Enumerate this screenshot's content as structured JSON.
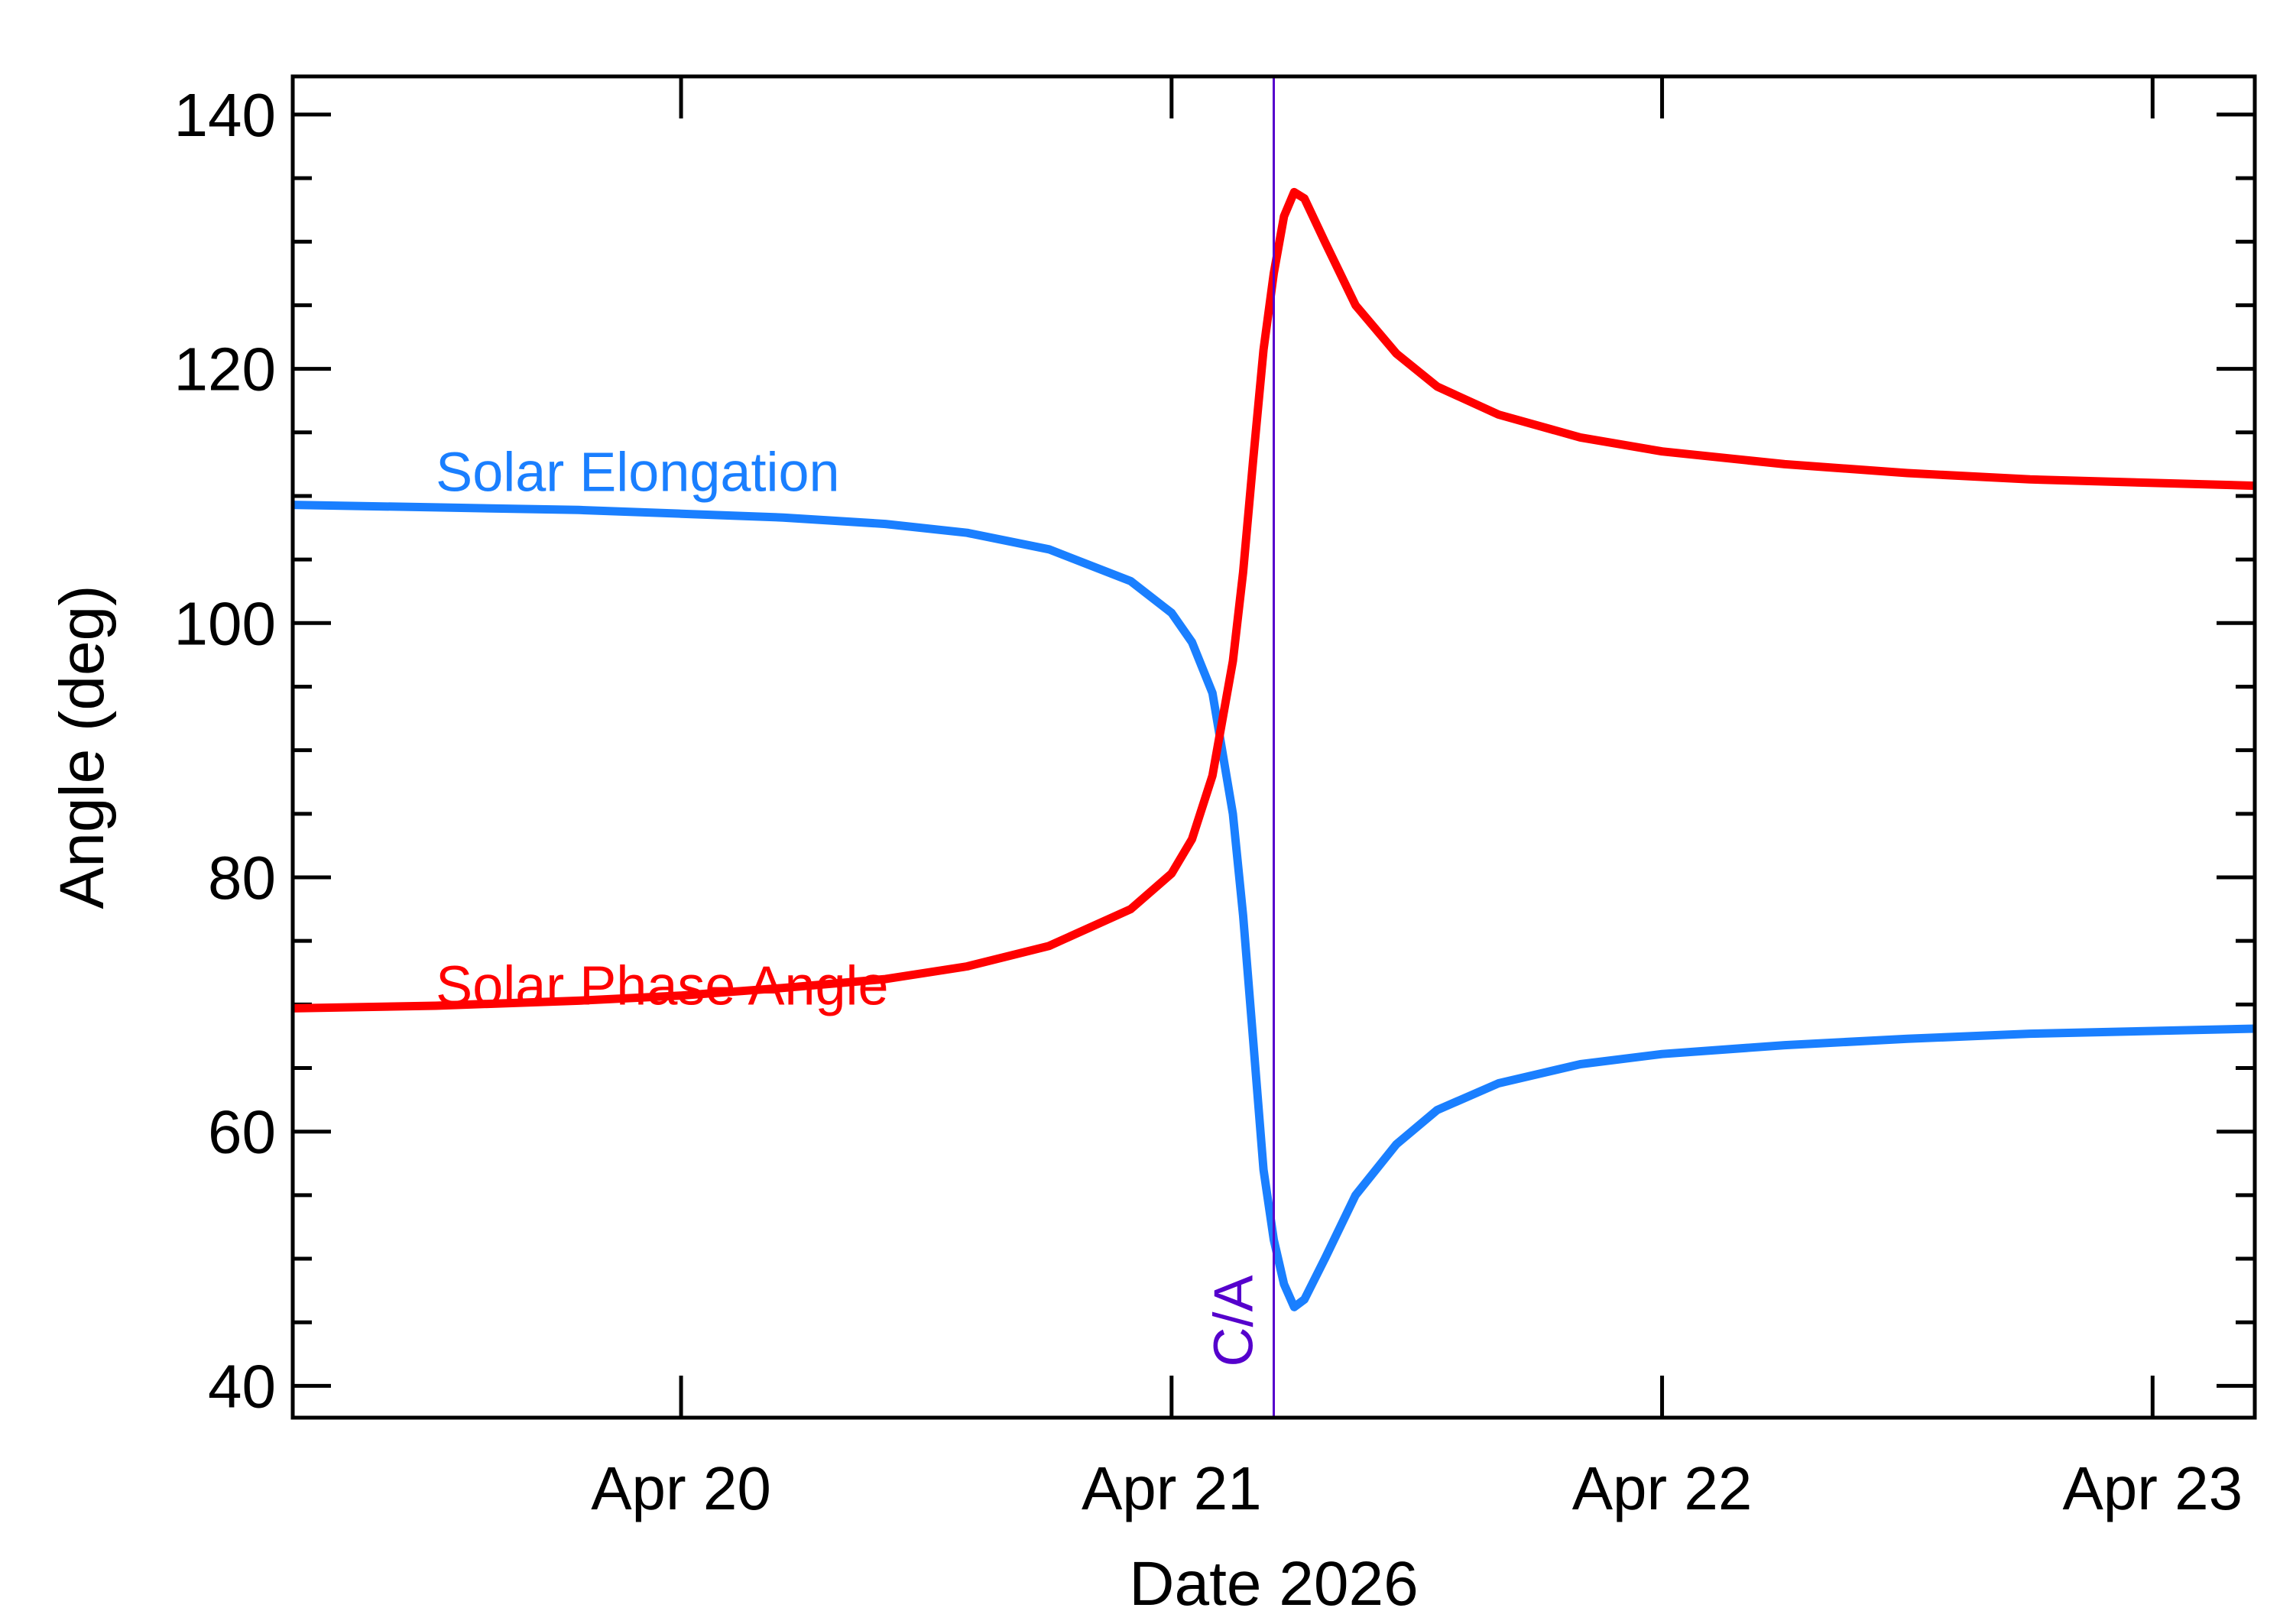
{
  "chart_data": {
    "type": "line",
    "title": "",
    "xlabel": "Date 2026",
    "ylabel": "Angle (deg)",
    "xlim": [
      "2026-04-19 05:00",
      "2026-04-23 05:00"
    ],
    "ylim": [
      37.5,
      143
    ],
    "grid": false,
    "legend": "inline labels",
    "x_ticks": [
      {
        "value": "2026-04-20",
        "label": "Apr 20"
      },
      {
        "value": "2026-04-21",
        "label": "Apr 21"
      },
      {
        "value": "2026-04-22",
        "label": "Apr 22"
      },
      {
        "value": "2026-04-23",
        "label": "Apr 23"
      }
    ],
    "y_ticks": [
      40,
      60,
      80,
      100,
      120,
      140
    ],
    "closest_approach": {
      "label": "C/A",
      "x": "2026-04-21 05:00",
      "color": "#5500cc"
    },
    "series": [
      {
        "name": "Solar Elongation",
        "color": "#1a7fff",
        "points": [
          [
            "2026-04-19 05:00",
            109.3
          ],
          [
            "2026-04-19 12:00",
            109.1
          ],
          [
            "2026-04-19 19:00",
            108.9
          ],
          [
            "2026-04-20 00:00",
            108.6
          ],
          [
            "2026-04-20 05:00",
            108.3
          ],
          [
            "2026-04-20 10:00",
            107.8
          ],
          [
            "2026-04-20 14:00",
            107.1
          ],
          [
            "2026-04-20 18:00",
            105.8
          ],
          [
            "2026-04-20 22:00",
            103.3
          ],
          [
            "2026-04-21 00:00",
            100.8
          ],
          [
            "2026-04-21 01:00",
            98.5
          ],
          [
            "2026-04-21 02:00",
            94.5
          ],
          [
            "2026-04-21 03:00",
            85.0
          ],
          [
            "2026-04-21 03:30",
            77.0
          ],
          [
            "2026-04-21 04:00",
            67.0
          ],
          [
            "2026-04-21 04:30",
            57.0
          ],
          [
            "2026-04-21 05:00",
            51.5
          ],
          [
            "2026-04-21 05:30",
            48.0
          ],
          [
            "2026-04-21 06:00",
            46.2
          ],
          [
            "2026-04-21 06:30",
            46.8
          ],
          [
            "2026-04-21 07:30",
            50.0
          ],
          [
            "2026-04-21 09:00",
            55.0
          ],
          [
            "2026-04-21 11:00",
            59.0
          ],
          [
            "2026-04-21 13:00",
            61.7
          ],
          [
            "2026-04-21 16:00",
            63.8
          ],
          [
            "2026-04-21 20:00",
            65.3
          ],
          [
            "2026-04-22 00:00",
            66.1
          ],
          [
            "2026-04-22 06:00",
            66.8
          ],
          [
            "2026-04-22 12:00",
            67.3
          ],
          [
            "2026-04-22 18:00",
            67.7
          ],
          [
            "2026-04-23 05:00",
            68.1
          ]
        ]
      },
      {
        "name": "Solar Phase Angle",
        "color": "#ff0000",
        "points": [
          [
            "2026-04-19 05:00",
            69.7
          ],
          [
            "2026-04-19 12:00",
            69.9
          ],
          [
            "2026-04-19 19:00",
            70.3
          ],
          [
            "2026-04-20 00:00",
            70.7
          ],
          [
            "2026-04-20 05:00",
            71.3
          ],
          [
            "2026-04-20 10:00",
            72.0
          ],
          [
            "2026-04-20 14:00",
            73.0
          ],
          [
            "2026-04-20 18:00",
            74.6
          ],
          [
            "2026-04-20 22:00",
            77.5
          ],
          [
            "2026-04-21 00:00",
            80.3
          ],
          [
            "2026-04-21 01:00",
            83.0
          ],
          [
            "2026-04-21 02:00",
            88.0
          ],
          [
            "2026-04-21 03:00",
            97.0
          ],
          [
            "2026-04-21 03:30",
            104.0
          ],
          [
            "2026-04-21 04:00",
            113.0
          ],
          [
            "2026-04-21 04:30",
            121.5
          ],
          [
            "2026-04-21 05:00",
            127.5
          ],
          [
            "2026-04-21 05:30",
            132.0
          ],
          [
            "2026-04-21 06:00",
            133.9
          ],
          [
            "2026-04-21 06:30",
            133.4
          ],
          [
            "2026-04-21 07:30",
            130.0
          ],
          [
            "2026-04-21 09:00",
            125.0
          ],
          [
            "2026-04-21 11:00",
            121.2
          ],
          [
            "2026-04-21 13:00",
            118.6
          ],
          [
            "2026-04-21 16:00",
            116.4
          ],
          [
            "2026-04-21 20:00",
            114.6
          ],
          [
            "2026-04-22 00:00",
            113.5
          ],
          [
            "2026-04-22 06:00",
            112.5
          ],
          [
            "2026-04-22 12:00",
            111.8
          ],
          [
            "2026-04-22 18:00",
            111.3
          ],
          [
            "2026-04-23 05:00",
            110.8
          ]
        ]
      }
    ]
  }
}
